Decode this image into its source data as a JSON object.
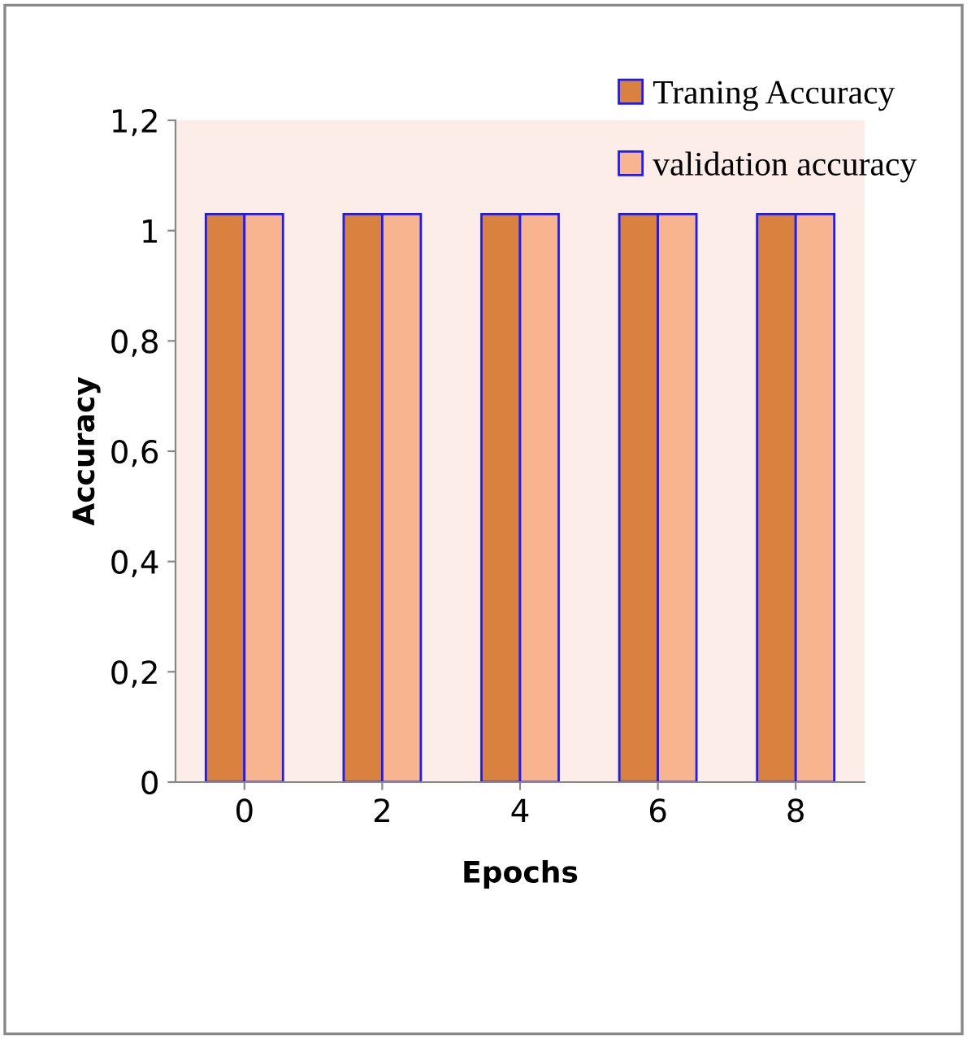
{
  "chart_data": {
    "type": "bar",
    "xlabel": "Epochs",
    "ylabel": "Accuracy",
    "categories": [
      "0",
      "2",
      "4",
      "6",
      "8"
    ],
    "series": [
      {
        "name": "Traning Accuracy",
        "color": "#d9823f",
        "values": [
          1.03,
          1.03,
          1.03,
          1.03,
          1.03
        ]
      },
      {
        "name": "validation accuracy",
        "color": "#f7b48f",
        "values": [
          1.03,
          1.03,
          1.03,
          1.03,
          1.03
        ]
      }
    ],
    "ylim": [
      0,
      1.2
    ],
    "yticks": [
      0,
      {
        "value": 0.2,
        "label": "0,2"
      },
      {
        "value": 0.4,
        "label": "0,4"
      },
      {
        "value": 0.6,
        "label": "0,6"
      },
      {
        "value": 0.8,
        "label": "0,8"
      },
      1,
      {
        "value": 1.2,
        "label": "1,2"
      }
    ],
    "grid": false,
    "legend": "top right"
  }
}
